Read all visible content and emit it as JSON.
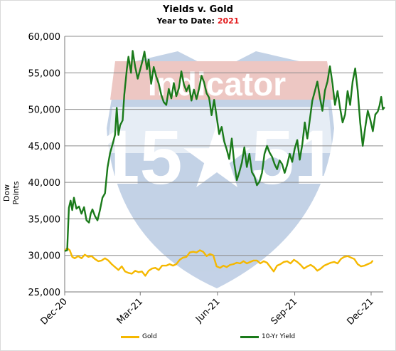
{
  "chart_data": {
    "type": "line",
    "title": "Yields v. Gold",
    "subtitle_prefix": "Year to Date:",
    "subtitle_year": "2021",
    "xlabel": "",
    "ylabel": "Dow Points",
    "ylim": [
      25000,
      60000
    ],
    "yticks": [
      "25,000",
      "30,000",
      "35,000",
      "40,000",
      "45,000",
      "50,000",
      "55,000",
      "60,000"
    ],
    "xticks": [
      "Dec-20",
      "Mar-21",
      "Jun-21",
      "Sep-21",
      "Dec-21"
    ],
    "grid": "horizontal",
    "legend_position": "bottom",
    "watermark_text": "Indicator 15 51",
    "series": [
      {
        "name": "Gold",
        "color": "#f5b800",
        "points": [
          [
            "2020-12-01",
            30600
          ],
          [
            "2020-12-04",
            31000
          ],
          [
            "2020-12-07",
            30700
          ],
          [
            "2020-12-10",
            29800
          ],
          [
            "2020-12-13",
            29600
          ],
          [
            "2020-12-17",
            29900
          ],
          [
            "2020-12-21",
            29600
          ],
          [
            "2020-12-25",
            30100
          ],
          [
            "2020-12-29",
            29800
          ],
          [
            "2021-01-02",
            29900
          ],
          [
            "2021-01-06",
            29500
          ],
          [
            "2021-01-10",
            29200
          ],
          [
            "2021-01-14",
            29300
          ],
          [
            "2021-01-18",
            29600
          ],
          [
            "2021-01-22",
            29300
          ],
          [
            "2021-01-26",
            28800
          ],
          [
            "2021-01-30",
            28400
          ],
          [
            "2021-02-03",
            28000
          ],
          [
            "2021-02-07",
            28500
          ],
          [
            "2021-02-11",
            27800
          ],
          [
            "2021-02-15",
            27600
          ],
          [
            "2021-02-19",
            27500
          ],
          [
            "2021-02-23",
            27900
          ],
          [
            "2021-02-27",
            27700
          ],
          [
            "2021-03-03",
            27800
          ],
          [
            "2021-03-07",
            27200
          ],
          [
            "2021-03-11",
            27900
          ],
          [
            "2021-03-15",
            28200
          ],
          [
            "2021-03-19",
            28300
          ],
          [
            "2021-03-23",
            28000
          ],
          [
            "2021-03-27",
            28600
          ],
          [
            "2021-04-01",
            28600
          ],
          [
            "2021-04-05",
            28800
          ],
          [
            "2021-04-09",
            28600
          ],
          [
            "2021-04-13",
            28800
          ],
          [
            "2021-04-17",
            29400
          ],
          [
            "2021-04-21",
            29700
          ],
          [
            "2021-04-25",
            29800
          ],
          [
            "2021-04-29",
            30400
          ],
          [
            "2021-05-03",
            30500
          ],
          [
            "2021-05-07",
            30400
          ],
          [
            "2021-05-11",
            30700
          ],
          [
            "2021-05-15",
            30500
          ],
          [
            "2021-05-19",
            29900
          ],
          [
            "2021-05-23",
            30200
          ],
          [
            "2021-05-27",
            30000
          ],
          [
            "2021-05-31",
            28500
          ],
          [
            "2021-06-04",
            28300
          ],
          [
            "2021-06-08",
            28600
          ],
          [
            "2021-06-12",
            28400
          ],
          [
            "2021-06-16",
            28700
          ],
          [
            "2021-06-20",
            28800
          ],
          [
            "2021-06-24",
            29000
          ],
          [
            "2021-06-28",
            28900
          ],
          [
            "2021-07-02",
            29200
          ],
          [
            "2021-07-06",
            28900
          ],
          [
            "2021-07-10",
            29100
          ],
          [
            "2021-07-14",
            29300
          ],
          [
            "2021-07-18",
            29300
          ],
          [
            "2021-07-22",
            28900
          ],
          [
            "2021-07-26",
            29200
          ],
          [
            "2021-07-30",
            29000
          ],
          [
            "2021-08-03",
            28400
          ],
          [
            "2021-08-07",
            27800
          ],
          [
            "2021-08-11",
            28600
          ],
          [
            "2021-08-15",
            28800
          ],
          [
            "2021-08-19",
            29100
          ],
          [
            "2021-08-23",
            29200
          ],
          [
            "2021-08-27",
            28900
          ],
          [
            "2021-08-31",
            29400
          ],
          [
            "2021-09-04",
            29100
          ],
          [
            "2021-09-08",
            28700
          ],
          [
            "2021-09-12",
            28200
          ],
          [
            "2021-09-16",
            28500
          ],
          [
            "2021-09-20",
            28700
          ],
          [
            "2021-09-24",
            28400
          ],
          [
            "2021-09-28",
            27900
          ],
          [
            "2021-10-02",
            28200
          ],
          [
            "2021-10-06",
            28600
          ],
          [
            "2021-10-10",
            28800
          ],
          [
            "2021-10-14",
            29000
          ],
          [
            "2021-10-18",
            29100
          ],
          [
            "2021-10-22",
            28900
          ],
          [
            "2021-10-26",
            29500
          ],
          [
            "2021-10-30",
            29800
          ],
          [
            "2021-11-03",
            29900
          ],
          [
            "2021-11-07",
            29700
          ],
          [
            "2021-11-11",
            29500
          ],
          [
            "2021-11-15",
            28800
          ],
          [
            "2021-11-19",
            28500
          ],
          [
            "2021-11-23",
            28600
          ],
          [
            "2021-11-27",
            28800
          ],
          [
            "2021-12-01",
            29000
          ],
          [
            "2021-12-03",
            29300
          ]
        ]
      },
      {
        "name": "10-Yr Yield",
        "color": "#1a7a1a",
        "points": [
          [
            "2020-12-01",
            30600
          ],
          [
            "2020-12-04",
            30700
          ],
          [
            "2020-12-06",
            36500
          ],
          [
            "2020-12-08",
            37500
          ],
          [
            "2020-12-10",
            36200
          ],
          [
            "2020-12-12",
            37900
          ],
          [
            "2020-12-15",
            36400
          ],
          [
            "2020-12-18",
            36700
          ],
          [
            "2020-12-21",
            35700
          ],
          [
            "2020-12-24",
            36600
          ],
          [
            "2020-12-27",
            34800
          ],
          [
            "2020-12-30",
            34500
          ],
          [
            "2021-01-01",
            35700
          ],
          [
            "2021-01-03",
            36300
          ],
          [
            "2021-01-06",
            35400
          ],
          [
            "2021-01-09",
            34800
          ],
          [
            "2021-01-12",
            36200
          ],
          [
            "2021-01-15",
            37900
          ],
          [
            "2021-01-18",
            38500
          ],
          [
            "2021-01-21",
            42000
          ],
          [
            "2021-01-24",
            44000
          ],
          [
            "2021-01-27",
            45200
          ],
          [
            "2021-01-30",
            46500
          ],
          [
            "2021-02-01",
            50200
          ],
          [
            "2021-02-03",
            46500
          ],
          [
            "2021-02-05",
            47800
          ],
          [
            "2021-02-08",
            48500
          ],
          [
            "2021-02-10",
            52000
          ],
          [
            "2021-02-13",
            55500
          ],
          [
            "2021-02-15",
            57200
          ],
          [
            "2021-02-18",
            55000
          ],
          [
            "2021-02-20",
            58000
          ],
          [
            "2021-02-23",
            55800
          ],
          [
            "2021-02-26",
            54200
          ],
          [
            "2021-03-01",
            55500
          ],
          [
            "2021-03-04",
            56800
          ],
          [
            "2021-03-06",
            57900
          ],
          [
            "2021-03-09",
            55500
          ],
          [
            "2021-03-11",
            56800
          ],
          [
            "2021-03-14",
            53500
          ],
          [
            "2021-03-17",
            55800
          ],
          [
            "2021-03-20",
            54500
          ],
          [
            "2021-03-23",
            53500
          ],
          [
            "2021-03-26",
            52000
          ],
          [
            "2021-03-29",
            51000
          ],
          [
            "2021-04-01",
            50600
          ],
          [
            "2021-04-04",
            52800
          ],
          [
            "2021-04-07",
            51500
          ],
          [
            "2021-04-10",
            53600
          ],
          [
            "2021-04-13",
            51800
          ],
          [
            "2021-04-16",
            52900
          ],
          [
            "2021-04-19",
            55200
          ],
          [
            "2021-04-22",
            53400
          ],
          [
            "2021-04-25",
            52500
          ],
          [
            "2021-04-28",
            53300
          ],
          [
            "2021-05-01",
            51200
          ],
          [
            "2021-05-04",
            52700
          ],
          [
            "2021-05-07",
            51400
          ],
          [
            "2021-05-10",
            52800
          ],
          [
            "2021-05-13",
            54600
          ],
          [
            "2021-05-16",
            53700
          ],
          [
            "2021-05-19",
            52200
          ],
          [
            "2021-05-22",
            51600
          ],
          [
            "2021-05-25",
            49200
          ],
          [
            "2021-05-28",
            51300
          ],
          [
            "2021-05-31",
            49000
          ],
          [
            "2021-06-03",
            46600
          ],
          [
            "2021-06-06",
            47600
          ],
          [
            "2021-06-09",
            45600
          ],
          [
            "2021-06-12",
            44500
          ],
          [
            "2021-06-15",
            43200
          ],
          [
            "2021-06-18",
            46000
          ],
          [
            "2021-06-21",
            42600
          ],
          [
            "2021-06-24",
            40300
          ],
          [
            "2021-06-27",
            41400
          ],
          [
            "2021-06-30",
            42700
          ],
          [
            "2021-07-03",
            44800
          ],
          [
            "2021-07-06",
            42100
          ],
          [
            "2021-07-09",
            43900
          ],
          [
            "2021-07-12",
            41400
          ],
          [
            "2021-07-15",
            40800
          ],
          [
            "2021-07-18",
            39600
          ],
          [
            "2021-07-21",
            40100
          ],
          [
            "2021-07-24",
            41300
          ],
          [
            "2021-07-27",
            43900
          ],
          [
            "2021-07-30",
            45000
          ],
          [
            "2021-08-02",
            44100
          ],
          [
            "2021-08-05",
            43500
          ],
          [
            "2021-08-08",
            42500
          ],
          [
            "2021-08-11",
            41800
          ],
          [
            "2021-08-14",
            43000
          ],
          [
            "2021-08-17",
            42500
          ],
          [
            "2021-08-20",
            41300
          ],
          [
            "2021-08-23",
            42400
          ],
          [
            "2021-08-26",
            43900
          ],
          [
            "2021-08-29",
            42800
          ],
          [
            "2021-09-01",
            44600
          ],
          [
            "2021-09-04",
            45800
          ],
          [
            "2021-09-07",
            43100
          ],
          [
            "2021-09-10",
            45200
          ],
          [
            "2021-09-13",
            48200
          ],
          [
            "2021-09-16",
            46000
          ],
          [
            "2021-09-19",
            48600
          ],
          [
            "2021-09-22",
            51200
          ],
          [
            "2021-09-25",
            52500
          ],
          [
            "2021-09-28",
            53800
          ],
          [
            "2021-10-01",
            51600
          ],
          [
            "2021-10-04",
            49800
          ],
          [
            "2021-10-07",
            52600
          ],
          [
            "2021-10-10",
            53800
          ],
          [
            "2021-10-13",
            55900
          ],
          [
            "2021-10-16",
            53500
          ],
          [
            "2021-10-19",
            50600
          ],
          [
            "2021-10-22",
            52500
          ],
          [
            "2021-10-25",
            50200
          ],
          [
            "2021-10-28",
            48200
          ],
          [
            "2021-10-31",
            49300
          ],
          [
            "2021-11-03",
            52500
          ],
          [
            "2021-11-06",
            50600
          ],
          [
            "2021-11-09",
            53800
          ],
          [
            "2021-11-12",
            55600
          ],
          [
            "2021-11-15",
            52600
          ],
          [
            "2021-11-18",
            48200
          ],
          [
            "2021-11-21",
            45000
          ],
          [
            "2021-11-24",
            47500
          ],
          [
            "2021-11-27",
            49800
          ],
          [
            "2021-11-30",
            48600
          ],
          [
            "2021-12-03",
            47000
          ],
          [
            "2021-12-06",
            49300
          ],
          [
            "2021-12-09",
            49700
          ],
          [
            "2021-12-11",
            50500
          ],
          [
            "2021-12-13",
            51700
          ],
          [
            "2021-12-15",
            50000
          ],
          [
            "2021-12-17",
            50300
          ]
        ]
      }
    ]
  }
}
